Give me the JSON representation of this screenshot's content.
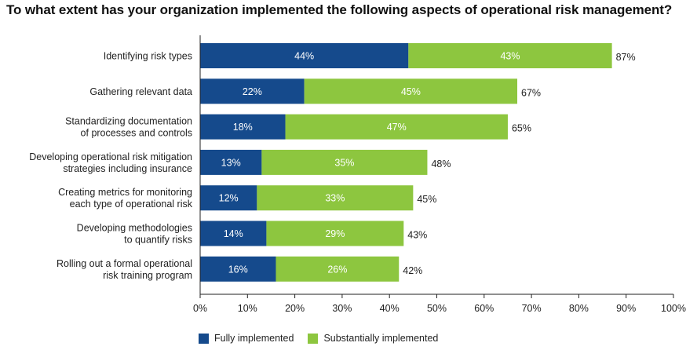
{
  "title": "To what extent has your organization implemented the following aspects of operational risk management?",
  "colors": {
    "fully": "#154a8c",
    "substantially": "#8dc63f",
    "axis": "#222222"
  },
  "chart_data": {
    "type": "bar",
    "orientation": "horizontal",
    "stacked": true,
    "categories": [
      [
        "Identifying risk types"
      ],
      [
        "Gathering relevant data"
      ],
      [
        "Standardizing documentation",
        "of processes and controls"
      ],
      [
        "Developing operational risk mitigation",
        "strategies including insurance"
      ],
      [
        "Creating metrics for monitoring",
        "each type of operational risk"
      ],
      [
        "Developing methodologies",
        "to quantify risks"
      ],
      [
        "Rolling out a formal operational",
        "risk training program"
      ]
    ],
    "series": [
      {
        "name": "Fully implemented",
        "values": [
          44,
          22,
          18,
          13,
          12,
          14,
          16
        ]
      },
      {
        "name": "Substantially implemented",
        "values": [
          43,
          45,
          47,
          35,
          33,
          29,
          26
        ]
      }
    ],
    "totals": [
      87,
      67,
      65,
      48,
      45,
      43,
      42
    ],
    "value_suffix": "%",
    "xlim": [
      0,
      100
    ],
    "xticks": [
      "0%",
      "10%",
      "20%",
      "30%",
      "40%",
      "50%",
      "60%",
      "70%",
      "80%",
      "90%",
      "100%"
    ],
    "legend_position": "bottom-left",
    "grid": false
  }
}
